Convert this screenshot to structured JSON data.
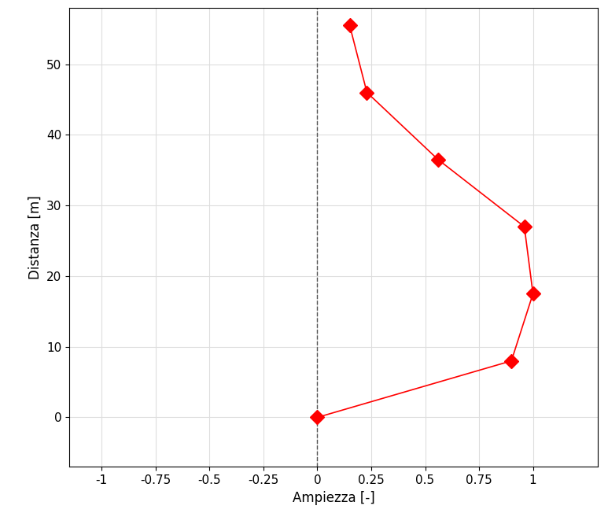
{
  "chart_data": {
    "type": "line",
    "x_label": "Ampiezza [-]",
    "y_label": "Distanza [m]",
    "x": [
      0,
      0.9,
      1.0,
      0.96,
      0.56,
      0.23,
      0.15
    ],
    "y": [
      0,
      8,
      17.5,
      27,
      36.5,
      46,
      55.5
    ],
    "color": "#ff0000",
    "marker": "diamond",
    "line_style": "solid",
    "xlim": [
      -1.15,
      1.3
    ],
    "ylim": [
      -7,
      58
    ],
    "xticks": [
      -1,
      -0.75,
      -0.5,
      -0.25,
      0,
      0.25,
      0.5,
      0.75,
      1
    ],
    "yticks": [
      0,
      10,
      20,
      30,
      40,
      50
    ],
    "grid": true
  }
}
